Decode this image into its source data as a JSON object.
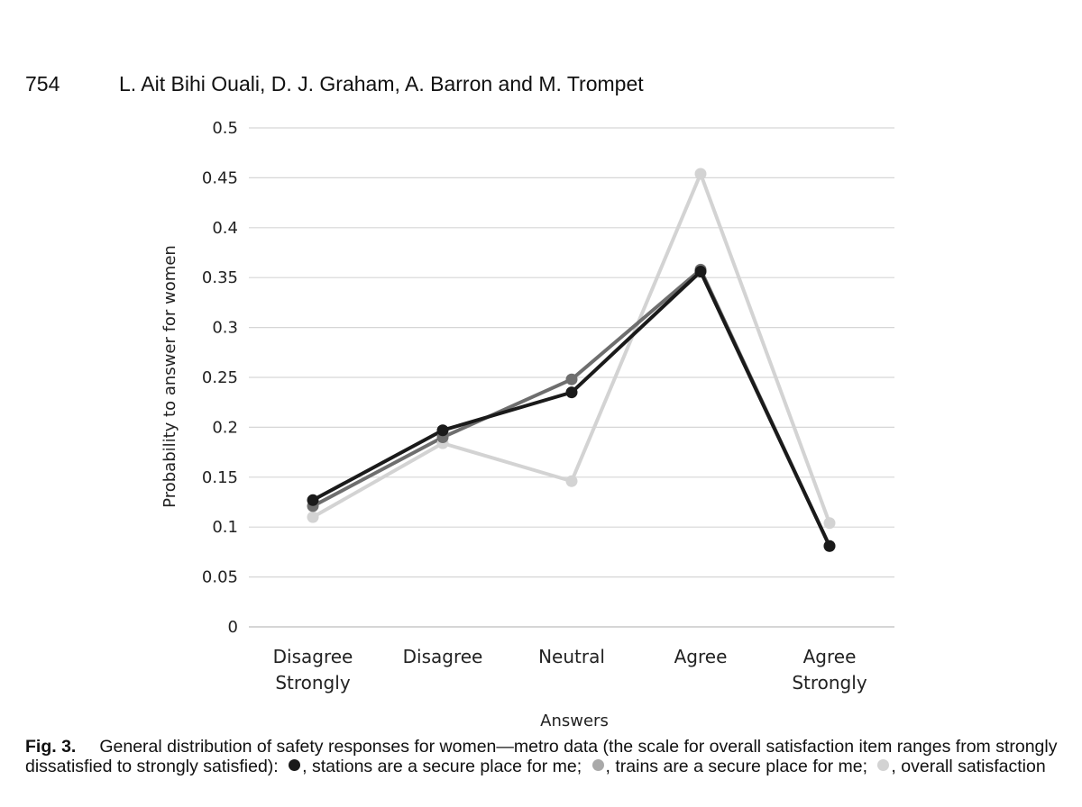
{
  "header": {
    "page_number": "754",
    "authors": "L. Ait Bihi Ouali, D. J. Graham, A. Barron and M. Trompet"
  },
  "chart_data": {
    "type": "line",
    "title": "",
    "xlabel": "Answers",
    "ylabel": "Probability to answer for women",
    "ylim": [
      0,
      0.5
    ],
    "y_ticks": [
      "0",
      "0.05",
      "0.1",
      "0.15",
      "0.2",
      "0.25",
      "0.3",
      "0.35",
      "0.4",
      "0.45",
      "0.5"
    ],
    "categories": [
      [
        "Disagree",
        "Strongly"
      ],
      [
        "Disagree"
      ],
      [
        "Neutral"
      ],
      [
        "Agree"
      ],
      [
        "Agree",
        "Strongly"
      ]
    ],
    "grid": true,
    "series": [
      {
        "name": "overall satisfaction",
        "color": "#d3d3d3",
        "values": [
          0.11,
          0.184,
          0.146,
          0.454,
          0.104
        ]
      },
      {
        "name": "trains are a secure place for me",
        "color": "#6e6e6e",
        "values": [
          0.121,
          0.19,
          0.248,
          0.358,
          0.081
        ]
      },
      {
        "name": "stations are a secure place for me",
        "color": "#1a1a1a",
        "values": [
          0.127,
          0.197,
          0.235,
          0.356,
          0.081
        ]
      }
    ]
  },
  "caption": {
    "label": "Fig. 3.",
    "text_1": "General distribution of safety responses for women—metro data (the scale for overall satisfaction item ranges from strongly dissatisfied to strongly satisfied):",
    "legend_1_text": ", stations are a secure place for me;",
    "legend_2_text": ", trains are a secure place for me;",
    "legend_3_text": ", overall satisfaction",
    "legend_1_color": "#1a1a1a",
    "legend_2_color": "#a9a9a9",
    "legend_3_color": "#d3d3d3"
  }
}
